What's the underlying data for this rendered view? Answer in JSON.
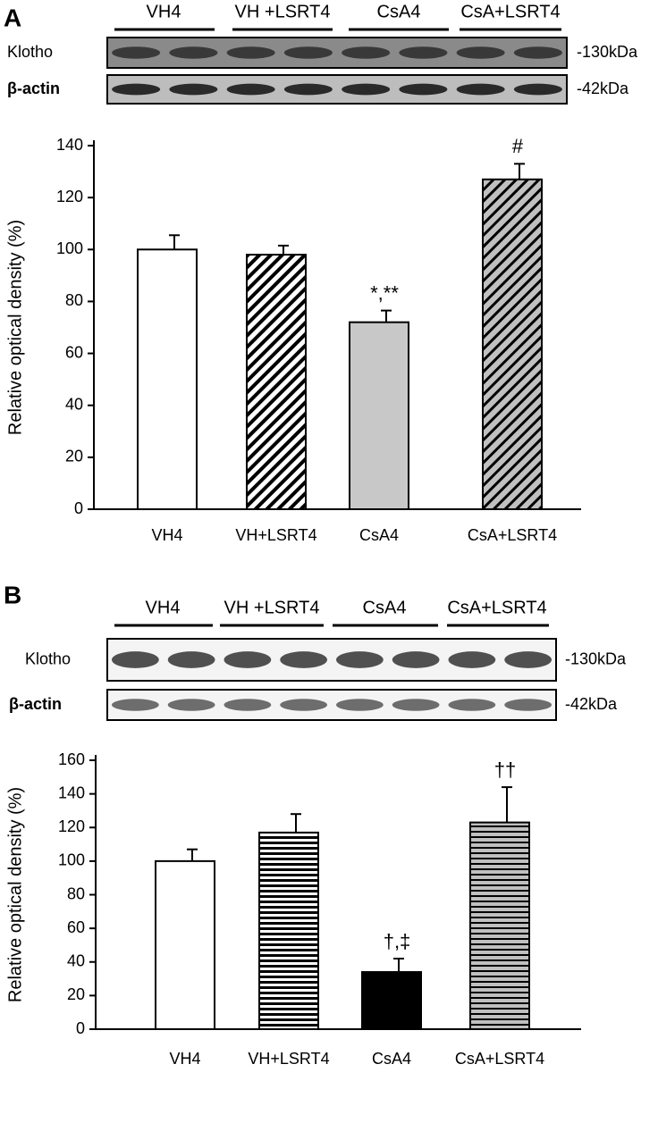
{
  "chart_data": [
    {
      "type": "bar",
      "panel": "A",
      "blot": {
        "groups": [
          "VH4",
          "VH +LSRT4",
          "CsA4",
          "CsA+LSRT4"
        ],
        "rows": [
          {
            "label": "Klotho",
            "size": "-130kDa"
          },
          {
            "label": "β-actin",
            "size": "-42kDa"
          }
        ]
      },
      "y_label": "Relative optical density (%)",
      "categories": [
        "VH4",
        "VH+LSRT4",
        "CsA4",
        "CsA+LSRT4"
      ],
      "values": [
        100,
        98,
        72,
        127
      ],
      "errors": [
        5.5,
        3.5,
        4.5,
        6
      ],
      "fills": [
        "#ffffff",
        "diagonal-on-white",
        "#c8c8c8",
        "diagonal-on-gray"
      ],
      "annotations": [
        {
          "text": "*,**",
          "category": "CsA4"
        },
        {
          "text": "#",
          "category": "CsA+LSRT4"
        }
      ],
      "ylim": [
        0,
        140
      ],
      "yticks": [
        0,
        20,
        40,
        60,
        80,
        100,
        120,
        140
      ]
    },
    {
      "type": "bar",
      "panel": "B",
      "blot": {
        "groups": [
          "VH4",
          "VH +LSRT4",
          "CsA4",
          "CsA+LSRT4"
        ],
        "rows": [
          {
            "label": "Klotho",
            "size": "-130kDa"
          },
          {
            "label": "β-actin",
            "size": "-42kDa"
          }
        ]
      },
      "y_label": "Relative optical density (%)",
      "categories": [
        "VH4",
        "VH+LSRT4",
        "CsA4",
        "CsA+LSRT4"
      ],
      "values": [
        100,
        117,
        34,
        123
      ],
      "errors": [
        7,
        11,
        8,
        21
      ],
      "fills": [
        "#ffffff",
        "horizontal-on-white",
        "#000000",
        "horizontal-on-gray"
      ],
      "annotations": [
        {
          "text": "†,‡",
          "category": "CsA4"
        },
        {
          "text": "††",
          "category": "CsA+LSRT4"
        }
      ],
      "ylim": [
        0,
        160
      ],
      "yticks": [
        0,
        20,
        40,
        60,
        80,
        100,
        120,
        140,
        160
      ]
    }
  ]
}
